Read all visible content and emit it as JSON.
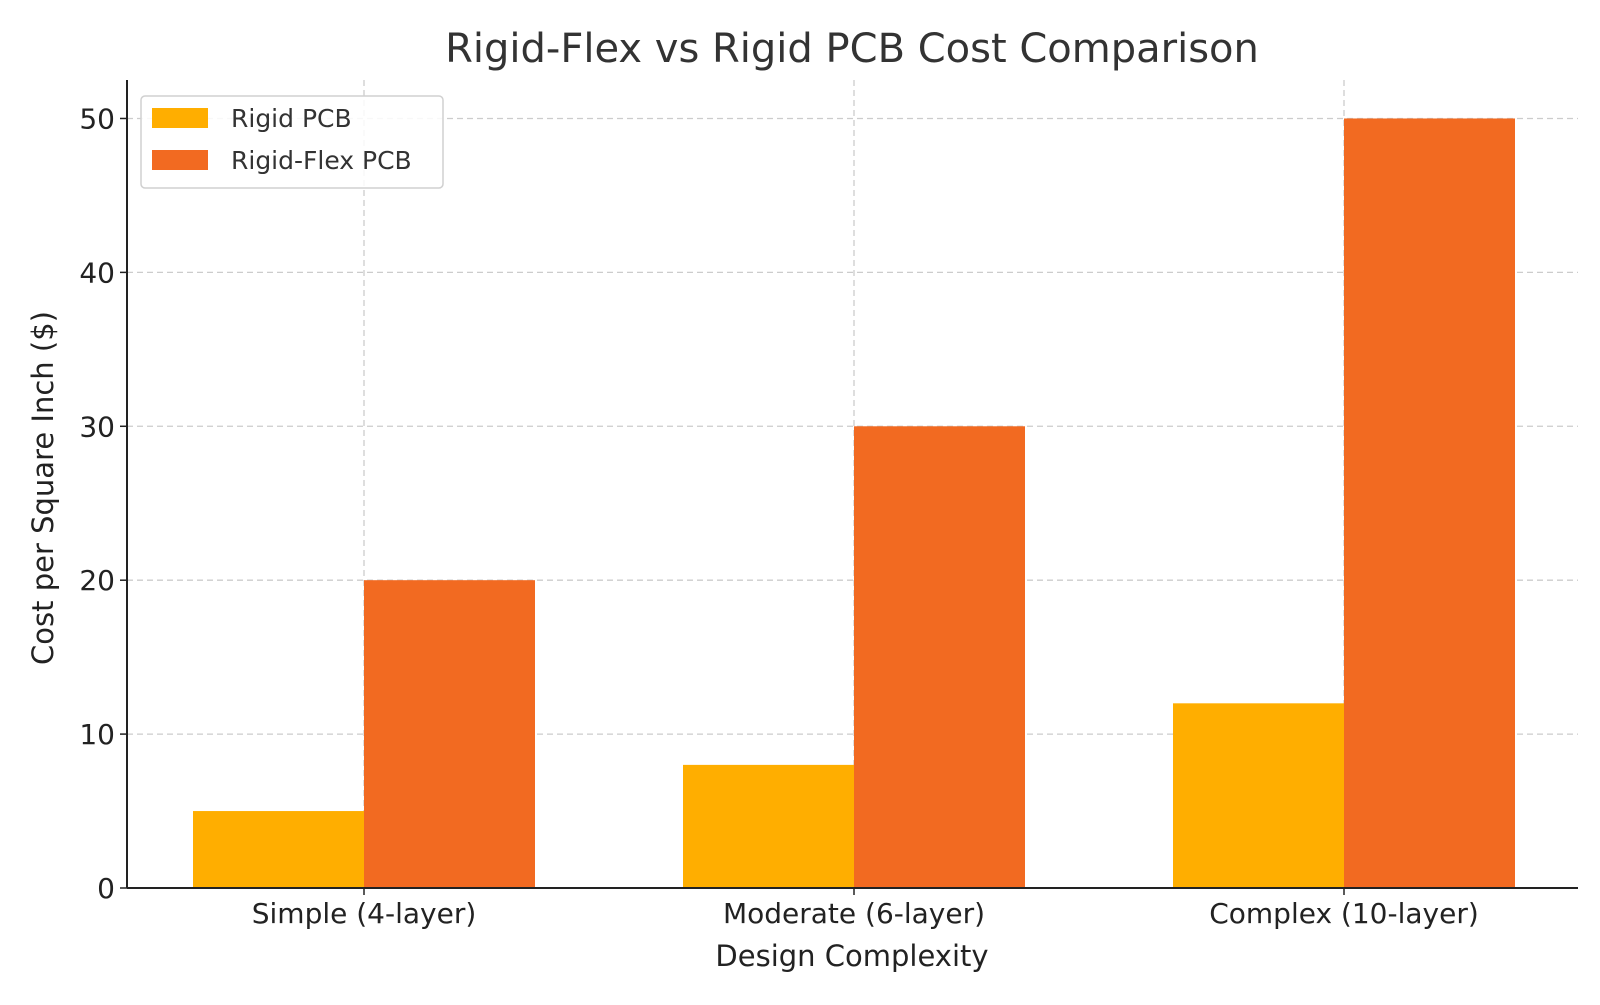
{
  "chart_data": {
    "type": "bar",
    "title": "Rigid-Flex vs Rigid PCB Cost Comparison",
    "xlabel": "Design Complexity",
    "ylabel": "Cost per Square Inch ($)",
    "categories": [
      "Simple (4-layer)",
      "Moderate (6-layer)",
      "Complex (10-layer)"
    ],
    "series": [
      {
        "name": "Rigid PCB",
        "values": [
          5,
          8,
          12
        ],
        "color": "#FFAE00"
      },
      {
        "name": "Rigid-Flex PCB",
        "values": [
          20,
          30,
          50
        ],
        "color": "#F26A21"
      }
    ],
    "ylim": [
      0,
      52.5
    ],
    "yticks": [
      0,
      10,
      20,
      30,
      40,
      50
    ],
    "grid": true,
    "legend_position": "top-left"
  }
}
